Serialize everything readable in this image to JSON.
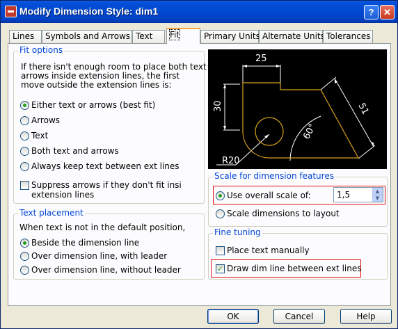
{
  "window": {
    "title": "Modify Dimension Style: dim1",
    "help_button": "?",
    "close_button": "✕"
  },
  "tabs": [
    {
      "label": "Lines"
    },
    {
      "label": "Symbols and Arrows"
    },
    {
      "label": "Text"
    },
    {
      "label": "Fit",
      "active": true
    },
    {
      "label": "Primary Units"
    },
    {
      "label": "Alternate Units"
    },
    {
      "label": "Tolerances"
    }
  ],
  "fit_options": {
    "legend": "Fit options",
    "description_lines": [
      "If there isn't enough room to place both text",
      "arrows inside extension lines, the first",
      "move outside the extension lines is:"
    ],
    "options": [
      {
        "label": "Either text or arrows (best fit)",
        "selected": true
      },
      {
        "label": "Arrows",
        "selected": false
      },
      {
        "label": "Text",
        "selected": false
      },
      {
        "label": "Both text and arrows",
        "selected": false
      },
      {
        "label": "Always keep text between ext lines",
        "selected": false
      }
    ],
    "suppress_label_line1": "Suppress arrows if they don't fit insi",
    "suppress_label_line2": "extension lines",
    "suppress_checked": false
  },
  "text_placement": {
    "legend": "Text placement",
    "description": "When text is not in the default position,",
    "options": [
      {
        "label": "Beside the dimension line",
        "selected": true
      },
      {
        "label": "Over dimension line, with leader",
        "selected": false
      },
      {
        "label": "Over dimension line, without leader",
        "selected": false
      }
    ]
  },
  "preview": {
    "dim_top": "25",
    "dim_left": "30",
    "dim_right": "51",
    "dim_angle": "60°",
    "dim_radius": "R20"
  },
  "scale": {
    "legend": "Scale for dimension features",
    "use_overall_label": "Use overall scale of:",
    "use_overall_selected": true,
    "scale_value": "1,5",
    "layout_label": "Scale dimensions to layout",
    "layout_selected": false
  },
  "fine_tuning": {
    "legend": "Fine tuning",
    "place_manually_label": "Place text manually",
    "place_manually_checked": false,
    "draw_dim_line_label": "Draw dim line between ext lines",
    "draw_dim_line_checked": true
  },
  "buttons": {
    "ok": "OK",
    "cancel": "Cancel",
    "help": "Help"
  },
  "colors": {
    "legend_blue": "#0046d5",
    "highlight_red": "#e01010",
    "preview_bg": "#000000",
    "preview_object": "#d9a21b",
    "title_blue": "#0048d0"
  }
}
